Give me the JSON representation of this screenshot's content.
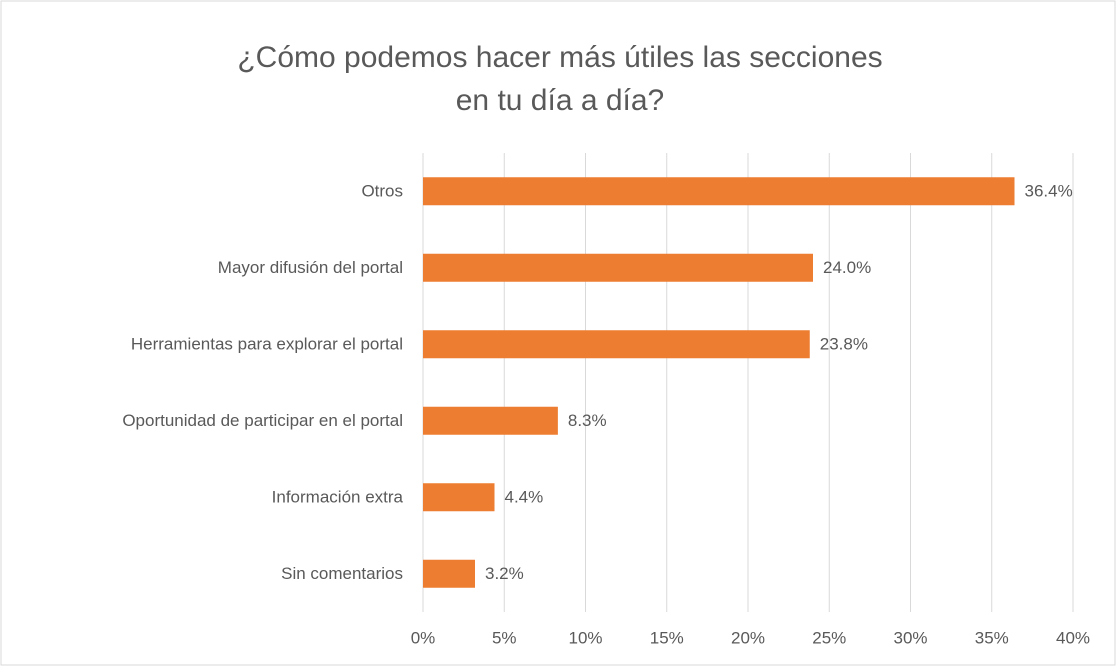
{
  "chart_data": {
    "type": "bar",
    "orientation": "horizontal",
    "title": "¿Cómo podemos hacer más útiles las secciones en tu día a día?",
    "categories": [
      "Otros",
      "Mayor difusión del portal",
      "Herramientas para explorar el portal",
      "Oportunidad de participar en el portal",
      "Información extra",
      "Sin comentarios"
    ],
    "values": [
      36.4,
      24.0,
      23.8,
      8.3,
      4.4,
      3.2
    ],
    "value_labels": [
      "36.4%",
      "24.0%",
      "23.8%",
      "8.3%",
      "4.4%",
      "3.2%"
    ],
    "color": "#ed7d31",
    "xlim": [
      0,
      40
    ],
    "xticks": [
      {
        "value": 0,
        "label": "0%"
      },
      {
        "value": 5,
        "label": "5%"
      },
      {
        "value": 10,
        "label": "10%"
      },
      {
        "value": 15,
        "label": "15%"
      },
      {
        "value": 20,
        "label": "20%"
      },
      {
        "value": 25,
        "label": "25%"
      },
      {
        "value": 30,
        "label": "30%"
      },
      {
        "value": 35,
        "label": "35%"
      },
      {
        "value": 40,
        "label": "40%"
      }
    ],
    "grid": true
  }
}
